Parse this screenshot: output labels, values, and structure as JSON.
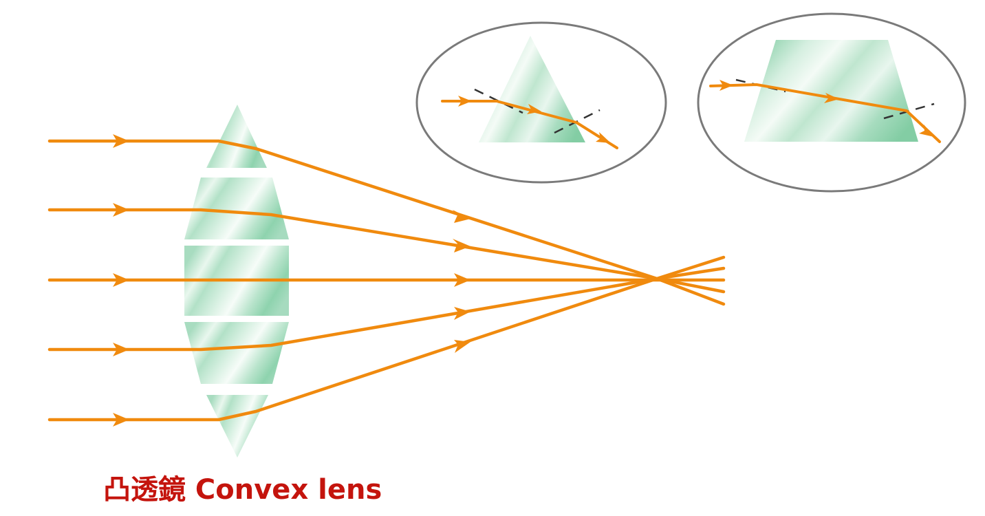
{
  "caption": "凸透鏡 Convex lens",
  "colors": {
    "ray": "#f08a0e",
    "caption": "#c4140d",
    "glass_light": "#f2fbf5",
    "glass_mid": "#cdebd9",
    "glass_dark": "#7fcda5",
    "glass_edge": "#9bd4b5",
    "inset_border": "#7a7a7a",
    "normal_line": "#333333"
  }
}
